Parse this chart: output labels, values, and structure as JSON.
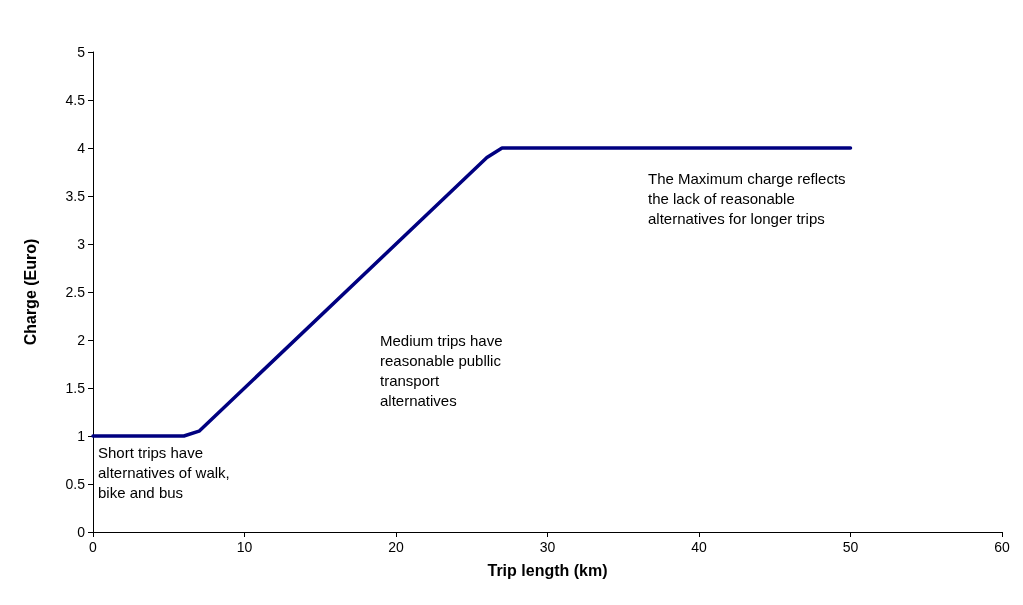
{
  "chart_data": {
    "type": "line",
    "xlabel": "Trip length (km)",
    "ylabel": "Charge (Euro)",
    "x": [
      0,
      6,
      7,
      26,
      27,
      50
    ],
    "series": [
      {
        "color": "#000080",
        "values": [
          1,
          1,
          1.05,
          3.9,
          4,
          4
        ]
      }
    ],
    "xlim": [
      0,
      60
    ],
    "xticks": [
      0,
      10,
      20,
      30,
      40,
      50,
      60
    ],
    "ylim": [
      0,
      5
    ],
    "yticks": [
      0,
      0.5,
      1,
      1.5,
      2,
      2.5,
      3,
      3.5,
      4,
      4.5,
      5
    ],
    "grid": false,
    "marker": "none",
    "line_style": "solid",
    "annotations": [
      "Short trips have\nalternatives of walk,\nbike and bus",
      "Medium trips have\nreasonable publlic\ntransport\nalternatives",
      "The Maximum charge reflects\nthe lack of reasonable\nalternatives for longer trips"
    ]
  }
}
